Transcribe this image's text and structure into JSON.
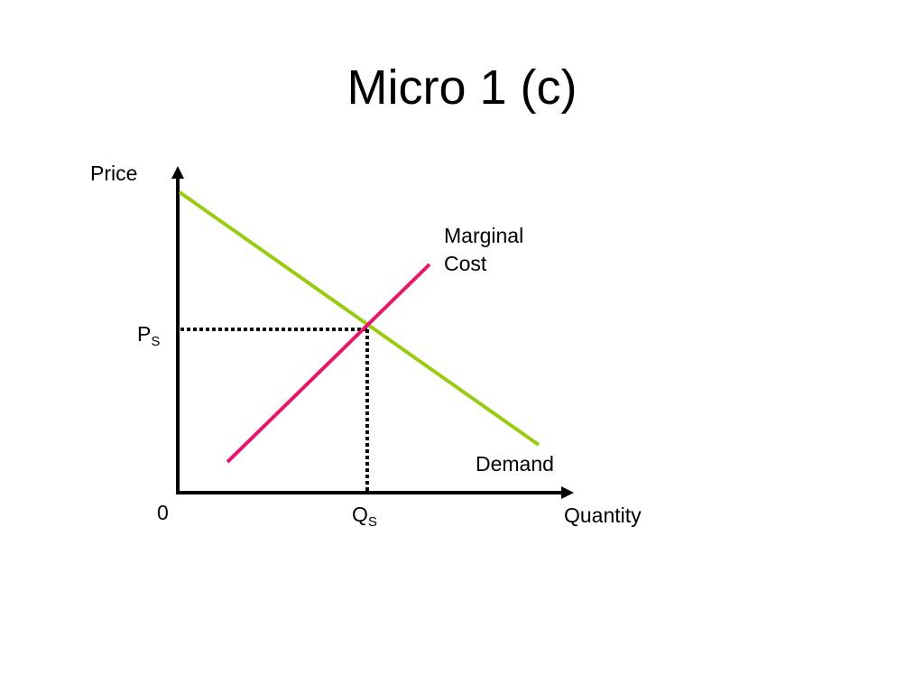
{
  "title": "Micro 1 (c)",
  "axes": {
    "y_label": "Price",
    "x_label": "Quantity",
    "origin_label": "0"
  },
  "price_label": {
    "main": "P",
    "subscript": "S"
  },
  "quantity_label": {
    "main": "Q",
    "subscript": "S"
  },
  "curves": {
    "marginal_cost": {
      "label_line1": "Marginal",
      "label_line2": "Cost",
      "color": "#E8156B"
    },
    "demand": {
      "label": "Demand",
      "color": "#99CC11"
    }
  },
  "colors": {
    "axis": "#000000",
    "guide": "#000000"
  }
}
